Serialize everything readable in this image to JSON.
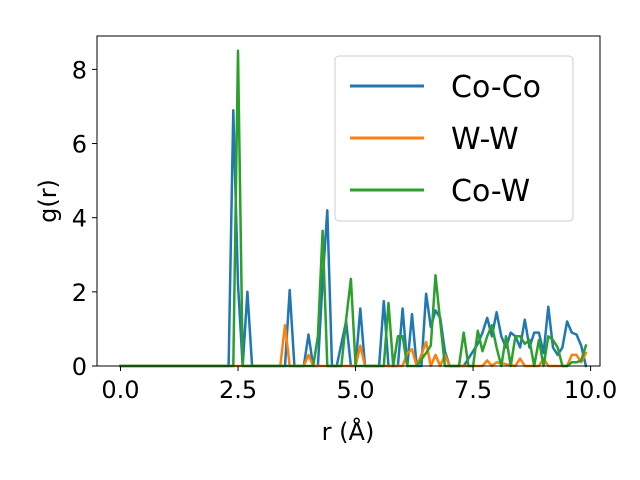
{
  "chart_data": {
    "type": "line",
    "title": "",
    "xlabel": "r (Å)",
    "ylabel": "g(r)",
    "xlim": [
      -0.5,
      10.2
    ],
    "ylim": [
      0,
      8.9
    ],
    "xticks": [
      0.0,
      2.5,
      5.0,
      7.5,
      10.0
    ],
    "xtick_labels": [
      "0.0",
      "2.5",
      "5.0",
      "7.5",
      "10.0"
    ],
    "yticks": [
      0,
      2,
      4,
      6,
      8
    ],
    "ytick_labels": [
      "0",
      "2",
      "4",
      "6",
      "8"
    ],
    "grid": false,
    "legend_position": "top-right",
    "series": [
      {
        "name": "Co-Co",
        "color": "#1f77b4",
        "x": [
          0.0,
          2.3,
          2.4,
          2.5,
          2.6,
          2.7,
          2.8,
          3.5,
          3.6,
          3.7,
          3.9,
          4.0,
          4.1,
          4.2,
          4.3,
          4.4,
          4.5,
          4.6,
          4.7,
          4.8,
          4.9,
          5.0,
          5.1,
          5.2,
          5.5,
          5.6,
          5.7,
          5.8,
          5.9,
          6.0,
          6.1,
          6.2,
          6.3,
          6.4,
          6.5,
          6.6,
          6.7,
          6.8,
          6.9,
          7.0,
          7.1,
          7.3,
          7.5,
          7.6,
          7.7,
          7.8,
          7.9,
          8.0,
          8.1,
          8.2,
          8.3,
          8.4,
          8.5,
          8.6,
          8.7,
          8.8,
          8.9,
          9.0,
          9.1,
          9.2,
          9.3,
          9.4,
          9.5,
          9.6,
          9.7,
          9.8,
          9.9
        ],
        "y": [
          0,
          0,
          6.9,
          2.2,
          0,
          2.0,
          0,
          0,
          2.05,
          0,
          0,
          0.85,
          0,
          0,
          2.3,
          4.2,
          0,
          0,
          0.6,
          1.2,
          0,
          0,
          1.55,
          0,
          0,
          1.75,
          0,
          0,
          0,
          1.55,
          0,
          1.4,
          0,
          0,
          1.95,
          1.05,
          1.5,
          1.3,
          0.4,
          0,
          0,
          0,
          0.4,
          0.6,
          0.9,
          1.3,
          0.8,
          1.45,
          0.8,
          0.5,
          0.9,
          0.8,
          0.5,
          1.25,
          0.5,
          0.9,
          0.9,
          0.35,
          1.6,
          0.5,
          0.3,
          0.5,
          1.2,
          0.9,
          0.85,
          0.55,
          0
        ],
        "x_tail": []
      },
      {
        "name": "W-W",
        "color": "#ff7f0e",
        "x": [
          0.0,
          3.4,
          3.5,
          3.6,
          3.9,
          4.0,
          4.1,
          5.0,
          5.1,
          5.2,
          6.0,
          6.1,
          6.2,
          6.3,
          6.4,
          6.5,
          6.6,
          6.7,
          6.8,
          6.9,
          7.0,
          7.7,
          7.8,
          7.9,
          8.0,
          8.4,
          8.5,
          8.6,
          8.9,
          9.0,
          9.1,
          9.3,
          9.5,
          9.6,
          9.7,
          9.8,
          9.9
        ],
        "y": [
          0,
          0,
          1.1,
          0,
          0,
          0.3,
          0,
          0,
          0.55,
          0,
          0,
          0.35,
          0.45,
          0,
          0.3,
          0.65,
          0,
          0.3,
          0,
          0.3,
          0,
          0,
          0.15,
          0,
          0.1,
          0,
          0.2,
          0,
          0,
          0.2,
          0,
          0,
          0,
          0.3,
          0.3,
          0.1,
          0.35
        ]
      },
      {
        "name": "Co-W",
        "color": "#2ca02c",
        "x": [
          0.0,
          2.4,
          2.5,
          2.6,
          4.1,
          4.2,
          4.3,
          4.4,
          4.5,
          4.7,
          4.8,
          4.9,
          5.0,
          5.6,
          5.7,
          5.8,
          5.9,
          6.0,
          6.1,
          6.2,
          6.3,
          6.5,
          6.6,
          6.7,
          6.8,
          6.9,
          7.0,
          7.1,
          7.2,
          7.3,
          7.4,
          7.5,
          7.6,
          7.7,
          7.8,
          7.9,
          8.0,
          8.1,
          8.2,
          8.3,
          8.4,
          8.5,
          8.6,
          8.7,
          8.8,
          8.9,
          9.0,
          9.1,
          9.2,
          9.3,
          9.4,
          9.5,
          9.6,
          9.7,
          9.8,
          9.9
        ],
        "y": [
          0,
          0,
          8.5,
          0,
          0,
          0.8,
          3.65,
          0,
          0,
          0,
          1.25,
          2.35,
          0,
          0,
          1.7,
          0,
          0.8,
          0.8,
          0,
          0,
          0,
          0.35,
          0.55,
          2.45,
          1.2,
          0,
          0,
          0,
          0,
          0.9,
          0,
          0,
          0.95,
          0.4,
          0.8,
          1.1,
          0.5,
          0,
          0.8,
          0,
          0.8,
          0.8,
          0.6,
          0.7,
          0,
          0.7,
          0,
          0.8,
          0.7,
          0.5,
          0,
          0,
          0.1,
          0.1,
          0.15,
          0.55
        ]
      }
    ]
  }
}
